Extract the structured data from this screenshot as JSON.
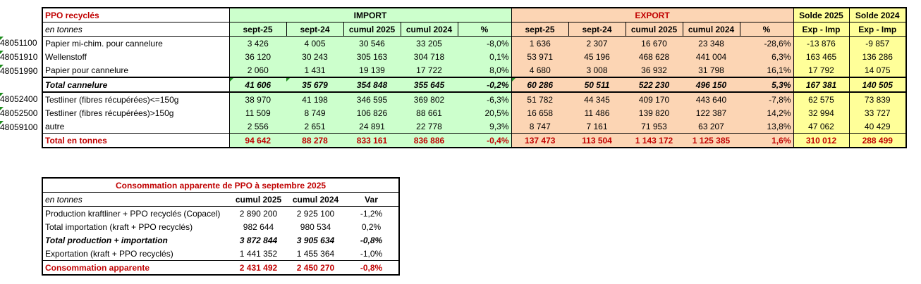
{
  "main_table": {
    "title": "PPO recyclés",
    "unit_label": "en tonnes",
    "group_headers": {
      "import": "IMPORT",
      "export": "EXPORT",
      "solde_2025": "Solde 2025",
      "solde_2024": "Solde 2024"
    },
    "sub_headers": {
      "import": [
        "sept-25",
        "sept-24",
        "cumul 2025",
        "cumul 2024",
        "%"
      ],
      "export": [
        "sept-25",
        "sept-24",
        "cumul 2025",
        "cumul 2024",
        "%"
      ],
      "solde_2025": "Exp - Imp",
      "solde_2024": "Exp - Imp"
    },
    "rows": [
      {
        "code": "48051100",
        "label": "Papier mi-chim. pour cannelure",
        "import": [
          "3 426",
          "4 005",
          "30 546",
          "33 205",
          "-8,0%"
        ],
        "export": [
          "1 636",
          "2 307",
          "16 670",
          "23 348",
          "-28,6%"
        ],
        "solde": [
          "-13 876",
          "-9 857"
        ]
      },
      {
        "code": "48051910",
        "label": "Wellenstoff",
        "import": [
          "36 120",
          "30 243",
          "305 163",
          "304 718",
          "0,1%"
        ],
        "export": [
          "53 971",
          "45 196",
          "468 628",
          "441 004",
          "6,3%"
        ],
        "solde": [
          "163 465",
          "136 286"
        ]
      },
      {
        "code": "48051990",
        "label": "Papier pour cannelure",
        "import": [
          "2 060",
          "1 431",
          "19 139",
          "17 722",
          "8,0%"
        ],
        "export": [
          "4 680",
          "3 008",
          "36 932",
          "31 798",
          "16,1%"
        ],
        "solde": [
          "17 792",
          "14 075"
        ]
      },
      {
        "code": "",
        "label": "Total cannelure",
        "import": [
          "41 606",
          "35 679",
          "354 848",
          "355 645",
          "-0,2%"
        ],
        "export": [
          "60 286",
          "50 511",
          "522 230",
          "496 150",
          "5,3%"
        ],
        "solde": [
          "167 381",
          "140 505"
        ]
      },
      {
        "code": "48052400",
        "label": "Testliner (fibres récupérées)<=150g",
        "import": [
          "38 970",
          "41 198",
          "346 595",
          "369 802",
          "-6,3%"
        ],
        "export": [
          "51 782",
          "44 345",
          "409 170",
          "443 640",
          "-7,8%"
        ],
        "solde": [
          "62 575",
          "73 839"
        ]
      },
      {
        "code": "48052500",
        "label": "Testliner (fibres récupérées)>150g",
        "import": [
          "11 509",
          "8 749",
          "106 826",
          "88 661",
          "20,5%"
        ],
        "export": [
          "16 658",
          "11 486",
          "139 820",
          "122 387",
          "14,2%"
        ],
        "solde": [
          "32 994",
          "33 727"
        ]
      },
      {
        "code": "48059100",
        "label": "autre",
        "import": [
          "2 556",
          "2 651",
          "24 891",
          "22 778",
          "9,3%"
        ],
        "export": [
          "8 747",
          "7 161",
          "71 953",
          "63 207",
          "13,8%"
        ],
        "solde": [
          "47 062",
          "40 429"
        ]
      },
      {
        "code": "",
        "label": "Total en tonnes",
        "import": [
          "94 642",
          "88 278",
          "833 161",
          "836 886",
          "-0,4%"
        ],
        "export": [
          "137 473",
          "113 504",
          "1 143 172",
          "1 125 385",
          "1,6%"
        ],
        "solde": [
          "310 012",
          "288 499"
        ]
      }
    ]
  },
  "consumption_table": {
    "title": "Consommation apparente de PPO à septembre 2025",
    "unit_label": "en tonnes",
    "headers": [
      "cumul 2025",
      "cumul 2024",
      "Var"
    ],
    "rows": [
      {
        "label": "Production kraftliner + PPO recyclés (Copacel)",
        "values": [
          "2 890 200",
          "2 925 100",
          "-1,2%"
        ]
      },
      {
        "label": "Total importation (kraft + PPO recyclés)",
        "values": [
          "982 644",
          "980 534",
          "0,2%"
        ]
      },
      {
        "label": "Total production + importation",
        "values": [
          "3 872 844",
          "3 905 634",
          "-0,8%"
        ]
      },
      {
        "label": "Exportation (kraft + PPO recyclés)",
        "values": [
          "1 441 352",
          "1 455 364",
          "-1,0%"
        ]
      },
      {
        "label": "Consommation apparente",
        "values": [
          "2 431 492",
          "2 450 270",
          "-0,8%"
        ]
      }
    ]
  }
}
